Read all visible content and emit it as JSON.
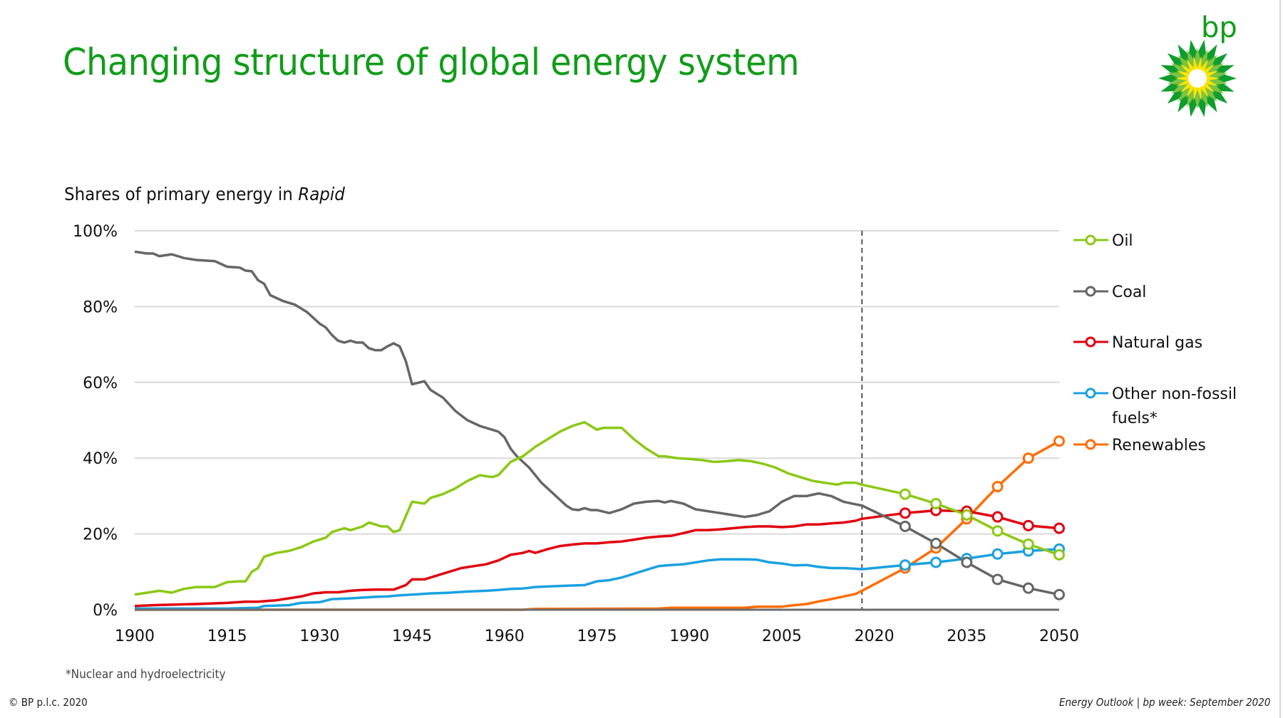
{
  "slide": {
    "title": "Changing structure of global energy system",
    "subtitle_prefix": "Shares of primary energy in ",
    "subtitle_italic": "Rapid",
    "footnote": "*Nuclear and hydroelectricity",
    "copyright": "© BP p.l.c. 2020",
    "source": "Energy Outlook  |  bp week: September 2020",
    "logo_text": "bp",
    "brand_color": "#119c1a"
  },
  "chart_data": {
    "type": "line",
    "title": "Shares of primary energy in Rapid",
    "xlabel": "",
    "ylabel": "",
    "xlim": [
      1900,
      2050
    ],
    "ylim": [
      0,
      100
    ],
    "x_ticks": [
      1900,
      1915,
      1930,
      1945,
      1960,
      1975,
      1990,
      2005,
      2020,
      2035,
      2050
    ],
    "x_tick_labels": [
      "1900",
      "1915",
      "1930",
      "1945",
      "1960",
      "1975",
      "1990",
      "2005",
      "2020",
      "2035",
      "2050"
    ],
    "y_ticks": [
      0,
      20,
      40,
      60,
      80,
      100
    ],
    "y_tick_labels": [
      "0%",
      "20%",
      "40%",
      "60%",
      "80%",
      "100%"
    ],
    "grid": true,
    "legend_position": "right",
    "projection_start_year": 2018,
    "projection_marker_years": [
      2025,
      2030,
      2035,
      2040,
      2045,
      2050
    ],
    "series": [
      {
        "name": "Oil",
        "color": "#8cc814",
        "points": [
          [
            1900,
            4
          ],
          [
            1902,
            4.5
          ],
          [
            1904,
            5
          ],
          [
            1906,
            4.5
          ],
          [
            1908,
            5.5
          ],
          [
            1910,
            6
          ],
          [
            1913,
            6
          ],
          [
            1915,
            7.3
          ],
          [
            1917,
            7.5
          ],
          [
            1918,
            7.5
          ],
          [
            1919,
            10
          ],
          [
            1920,
            11
          ],
          [
            1921,
            14
          ],
          [
            1923,
            15
          ],
          [
            1925,
            15.5
          ],
          [
            1927,
            16.5
          ],
          [
            1929,
            18
          ],
          [
            1931,
            19
          ],
          [
            1932,
            20.5
          ],
          [
            1934,
            21.5
          ],
          [
            1935,
            21
          ],
          [
            1937,
            22
          ],
          [
            1938,
            23
          ],
          [
            1940,
            22
          ],
          [
            1941,
            22
          ],
          [
            1942,
            20.5
          ],
          [
            1943,
            21
          ],
          [
            1945,
            28.5
          ],
          [
            1947,
            28
          ],
          [
            1948,
            29.5
          ],
          [
            1950,
            30.5
          ],
          [
            1952,
            32
          ],
          [
            1954,
            34
          ],
          [
            1956,
            35.5
          ],
          [
            1958,
            35
          ],
          [
            1959,
            35.5
          ],
          [
            1961,
            39
          ],
          [
            1963,
            40.5
          ],
          [
            1965,
            43
          ],
          [
            1967,
            45
          ],
          [
            1969,
            47
          ],
          [
            1971,
            48.5
          ],
          [
            1973,
            49.5
          ],
          [
            1975,
            47.5
          ],
          [
            1976,
            48
          ],
          [
            1979,
            48
          ],
          [
            1981,
            45
          ],
          [
            1983,
            42.5
          ],
          [
            1985,
            40.5
          ],
          [
            1986,
            40.5
          ],
          [
            1988,
            40
          ],
          [
            1990,
            39.8
          ],
          [
            1992,
            39.5
          ],
          [
            1994,
            39
          ],
          [
            1996,
            39.2
          ],
          [
            1998,
            39.5
          ],
          [
            2000,
            39.2
          ],
          [
            2002,
            38.5
          ],
          [
            2004,
            37.5
          ],
          [
            2006,
            36
          ],
          [
            2008,
            35
          ],
          [
            2010,
            34
          ],
          [
            2012,
            33.5
          ],
          [
            2014,
            33
          ],
          [
            2015,
            33.5
          ],
          [
            2017,
            33.5
          ],
          [
            2018,
            33
          ],
          [
            2025,
            30.5
          ],
          [
            2030,
            28
          ],
          [
            2035,
            25
          ],
          [
            2040,
            20.8
          ],
          [
            2045,
            17.3
          ],
          [
            2050,
            14.5
          ]
        ]
      },
      {
        "name": "Coal",
        "color": "#666666",
        "points": [
          [
            1900,
            94.5
          ],
          [
            1902,
            94
          ],
          [
            1903,
            94
          ],
          [
            1904,
            93.3
          ],
          [
            1906,
            93.8
          ],
          [
            1908,
            92.8
          ],
          [
            1910,
            92.3
          ],
          [
            1913,
            92
          ],
          [
            1915,
            90.5
          ],
          [
            1917,
            90.3
          ],
          [
            1918,
            89.5
          ],
          [
            1919,
            89.3
          ],
          [
            1920,
            87
          ],
          [
            1921,
            86
          ],
          [
            1922,
            83
          ],
          [
            1924,
            81.5
          ],
          [
            1926,
            80.5
          ],
          [
            1928,
            78.5
          ],
          [
            1930,
            75.5
          ],
          [
            1931,
            74.5
          ],
          [
            1932,
            72.5
          ],
          [
            1933,
            71
          ],
          [
            1934,
            70.5
          ],
          [
            1935,
            71
          ],
          [
            1936,
            70.5
          ],
          [
            1937,
            70.5
          ],
          [
            1938,
            69
          ],
          [
            1939,
            68.5
          ],
          [
            1940,
            68.5
          ],
          [
            1941,
            69.5
          ],
          [
            1942,
            70.3
          ],
          [
            1943,
            69.5
          ],
          [
            1944,
            65.5
          ],
          [
            1945,
            59.5
          ],
          [
            1947,
            60.3
          ],
          [
            1948,
            58
          ],
          [
            1950,
            56
          ],
          [
            1952,
            52.5
          ],
          [
            1954,
            50
          ],
          [
            1956,
            48.5
          ],
          [
            1958,
            47.5
          ],
          [
            1959,
            47
          ],
          [
            1960,
            45.5
          ],
          [
            1961,
            42.5
          ],
          [
            1962,
            40.5
          ],
          [
            1964,
            37.5
          ],
          [
            1966,
            33.5
          ],
          [
            1968,
            30.5
          ],
          [
            1970,
            27.5
          ],
          [
            1971,
            26.5
          ],
          [
            1972,
            26.3
          ],
          [
            1973,
            26.8
          ],
          [
            1974,
            26.3
          ],
          [
            1975,
            26.3
          ],
          [
            1977,
            25.5
          ],
          [
            1979,
            26.5
          ],
          [
            1981,
            28
          ],
          [
            1983,
            28.5
          ],
          [
            1985,
            28.7
          ],
          [
            1986,
            28.3
          ],
          [
            1987,
            28.7
          ],
          [
            1989,
            28
          ],
          [
            1991,
            26.5
          ],
          [
            1993,
            26
          ],
          [
            1995,
            25.5
          ],
          [
            1997,
            25
          ],
          [
            1999,
            24.5
          ],
          [
            2001,
            25
          ],
          [
            2003,
            26
          ],
          [
            2005,
            28.5
          ],
          [
            2007,
            30
          ],
          [
            2009,
            30
          ],
          [
            2011,
            30.7
          ],
          [
            2013,
            30
          ],
          [
            2015,
            28.5
          ],
          [
            2017,
            27.8
          ],
          [
            2018,
            27.5
          ],
          [
            2025,
            22
          ],
          [
            2030,
            17.5
          ],
          [
            2035,
            12.5
          ],
          [
            2040,
            8
          ],
          [
            2045,
            5.7
          ],
          [
            2050,
            4
          ]
        ]
      },
      {
        "name": "Natural gas",
        "color": "#e0000f",
        "points": [
          [
            1900,
            1
          ],
          [
            1903,
            1.2
          ],
          [
            1905,
            1.3
          ],
          [
            1910,
            1.5
          ],
          [
            1915,
            1.8
          ],
          [
            1918,
            2.1
          ],
          [
            1920,
            2.1
          ],
          [
            1923,
            2.5
          ],
          [
            1925,
            3
          ],
          [
            1927,
            3.5
          ],
          [
            1929,
            4.3
          ],
          [
            1931,
            4.6
          ],
          [
            1933,
            4.6
          ],
          [
            1935,
            5
          ],
          [
            1937,
            5.2
          ],
          [
            1939,
            5.3
          ],
          [
            1942,
            5.3
          ],
          [
            1944,
            6.5
          ],
          [
            1945,
            8
          ],
          [
            1947,
            8
          ],
          [
            1949,
            9
          ],
          [
            1951,
            10
          ],
          [
            1953,
            11
          ],
          [
            1955,
            11.5
          ],
          [
            1957,
            12
          ],
          [
            1959,
            13
          ],
          [
            1961,
            14.5
          ],
          [
            1963,
            15
          ],
          [
            1964,
            15.5
          ],
          [
            1965,
            15
          ],
          [
            1967,
            16
          ],
          [
            1969,
            16.8
          ],
          [
            1971,
            17.2
          ],
          [
            1973,
            17.5
          ],
          [
            1975,
            17.5
          ],
          [
            1977,
            17.8
          ],
          [
            1979,
            18
          ],
          [
            1981,
            18.5
          ],
          [
            1983,
            19
          ],
          [
            1985,
            19.3
          ],
          [
            1987,
            19.5
          ],
          [
            1989,
            20.2
          ],
          [
            1991,
            21
          ],
          [
            1993,
            21
          ],
          [
            1995,
            21.2
          ],
          [
            1997,
            21.5
          ],
          [
            1999,
            21.8
          ],
          [
            2001,
            22
          ],
          [
            2003,
            22
          ],
          [
            2005,
            21.8
          ],
          [
            2007,
            22
          ],
          [
            2009,
            22.5
          ],
          [
            2011,
            22.5
          ],
          [
            2013,
            22.8
          ],
          [
            2015,
            23
          ],
          [
            2017,
            23.5
          ],
          [
            2018,
            24
          ],
          [
            2025,
            25.5
          ],
          [
            2030,
            26.2
          ],
          [
            2035,
            26
          ],
          [
            2040,
            24.5
          ],
          [
            2045,
            22.2
          ],
          [
            2050,
            21.5
          ]
        ]
      },
      {
        "name": "Other non-fossil fuels*",
        "color": "#1aa1e0",
        "points": [
          [
            1900,
            0.3
          ],
          [
            1915,
            0.3
          ],
          [
            1920,
            0.5
          ],
          [
            1921,
            1
          ],
          [
            1925,
            1.2
          ],
          [
            1927,
            1.8
          ],
          [
            1930,
            2
          ],
          [
            1932,
            2.8
          ],
          [
            1935,
            3
          ],
          [
            1937,
            3.2
          ],
          [
            1939,
            3.4
          ],
          [
            1941,
            3.5
          ],
          [
            1943,
            3.8
          ],
          [
            1945,
            4
          ],
          [
            1948,
            4.3
          ],
          [
            1951,
            4.5
          ],
          [
            1954,
            4.8
          ],
          [
            1957,
            5
          ],
          [
            1959,
            5.2
          ],
          [
            1961,
            5.5
          ],
          [
            1963,
            5.6
          ],
          [
            1965,
            6
          ],
          [
            1968,
            6.2
          ],
          [
            1971,
            6.4
          ],
          [
            1973,
            6.5
          ],
          [
            1975,
            7.5
          ],
          [
            1977,
            7.8
          ],
          [
            1979,
            8.5
          ],
          [
            1981,
            9.5
          ],
          [
            1983,
            10.5
          ],
          [
            1985,
            11.5
          ],
          [
            1987,
            11.8
          ],
          [
            1989,
            12
          ],
          [
            1991,
            12.5
          ],
          [
            1993,
            13
          ],
          [
            1995,
            13.3
          ],
          [
            1997,
            13.3
          ],
          [
            1999,
            13.3
          ],
          [
            2001,
            13.2
          ],
          [
            2003,
            12.5
          ],
          [
            2005,
            12.2
          ],
          [
            2007,
            11.7
          ],
          [
            2009,
            11.8
          ],
          [
            2011,
            11.3
          ],
          [
            2013,
            11
          ],
          [
            2015,
            11
          ],
          [
            2017,
            10.8
          ],
          [
            2018,
            10.7
          ],
          [
            2025,
            11.8
          ],
          [
            2030,
            12.5
          ],
          [
            2035,
            13.5
          ],
          [
            2040,
            14.7
          ],
          [
            2045,
            15.5
          ],
          [
            2050,
            16
          ]
        ]
      },
      {
        "name": "Renewables",
        "color": "#ff6c00",
        "points": [
          [
            1900,
            0
          ],
          [
            1963,
            0
          ],
          [
            1965,
            0.2
          ],
          [
            1985,
            0.3
          ],
          [
            1987,
            0.5
          ],
          [
            1999,
            0.5
          ],
          [
            2001,
            0.8
          ],
          [
            2005,
            0.8
          ],
          [
            2007,
            1.2
          ],
          [
            2009,
            1.5
          ],
          [
            2011,
            2.2
          ],
          [
            2013,
            2.8
          ],
          [
            2015,
            3.5
          ],
          [
            2017,
            4.2
          ],
          [
            2018,
            5
          ],
          [
            2025,
            11
          ],
          [
            2030,
            16.3
          ],
          [
            2035,
            24
          ],
          [
            2040,
            32.5
          ],
          [
            2045,
            40
          ],
          [
            2050,
            44.5
          ]
        ]
      }
    ]
  }
}
